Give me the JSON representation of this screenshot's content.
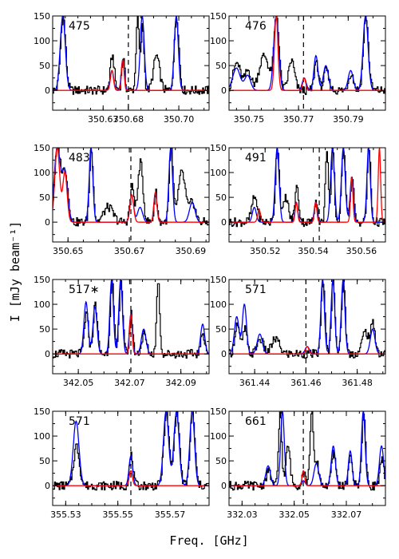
{
  "chart_data": {
    "type": "line",
    "ylabel": "I [mJy beam⁻¹]",
    "xlabel": "Freq. [GHz]",
    "ylim": [
      -40,
      150
    ],
    "yticks": [
      0,
      50,
      100,
      150
    ],
    "colors": {
      "observed": "#000000",
      "model_total": "#0000ff",
      "model_species": "#ff0000",
      "reference_line": "#000000"
    },
    "panels": [
      {
        "id": "p475",
        "label": "475",
        "xlim": [
          350.65,
          350.712
        ],
        "xticks": [
          350.67,
          350.68,
          350.7
        ],
        "tick_labels": [
          "350.67",
          "350.68",
          "350.70"
        ],
        "marker": 350.68,
        "blue_peaks": [
          [
            350.654,
            150,
            0.001
          ],
          [
            350.6735,
            40,
            0.0007
          ],
          [
            350.6778,
            62,
            0.0006
          ],
          [
            350.6855,
            150,
            0.0008
          ],
          [
            350.699,
            150,
            0.0008
          ]
        ],
        "red_peaks": [
          [
            350.6735,
            40,
            0.0006
          ],
          [
            350.6778,
            62,
            0.0005
          ]
        ],
        "black_peaks": [
          [
            350.654,
            150,
            0.001
          ],
          [
            350.6735,
            70,
            0.0008
          ],
          [
            350.6778,
            65,
            0.0006
          ],
          [
            350.6835,
            150,
            0.0006
          ],
          [
            350.6855,
            130,
            0.0006
          ],
          [
            350.691,
            70,
            0.0012
          ],
          [
            350.699,
            150,
            0.0009
          ]
        ]
      },
      {
        "id": "p476",
        "label": "476",
        "xlim": [
          350.742,
          350.805
        ],
        "xticks": [
          350.75,
          350.77,
          350.79
        ],
        "tick_labels": [
          "350.75",
          "350.77",
          "350.79"
        ],
        "marker": 350.772,
        "blue_peaks": [
          [
            350.745,
            45,
            0.0015
          ],
          [
            350.7495,
            30,
            0.0012
          ],
          [
            350.761,
            150,
            0.001
          ],
          [
            350.7723,
            25,
            0.0008
          ],
          [
            350.777,
            70,
            0.0008
          ],
          [
            350.781,
            50,
            0.001
          ],
          [
            350.791,
            40,
            0.001
          ],
          [
            350.797,
            150,
            0.001
          ]
        ],
        "red_peaks": [
          [
            350.761,
            150,
            0.0007
          ],
          [
            350.7723,
            25,
            0.0006
          ]
        ],
        "black_peaks": [
          [
            350.745,
            55,
            0.0015
          ],
          [
            350.7495,
            40,
            0.0012
          ],
          [
            350.756,
            70,
            0.002
          ],
          [
            350.761,
            150,
            0.001
          ],
          [
            350.767,
            60,
            0.0012
          ],
          [
            350.777,
            60,
            0.0008
          ],
          [
            350.781,
            40,
            0.001
          ],
          [
            350.791,
            35,
            0.001
          ],
          [
            350.797,
            150,
            0.001
          ]
        ]
      },
      {
        "id": "p483",
        "label": "483",
        "xlim": [
          350.645,
          350.696
        ],
        "xticks": [
          350.65,
          350.67,
          350.69
        ],
        "tick_labels": [
          "350.65",
          "350.67",
          "350.69"
        ],
        "marker": 350.6705,
        "blue_peaks": [
          [
            350.6465,
            150,
            0.001
          ],
          [
            350.649,
            100,
            0.0009
          ],
          [
            350.6575,
            150,
            0.0006
          ],
          [
            350.6708,
            55,
            0.0006
          ],
          [
            350.6735,
            30,
            0.0008
          ],
          [
            350.6785,
            60,
            0.0005
          ],
          [
            350.6835,
            150,
            0.0006
          ],
          [
            350.6905,
            40,
            0.0009
          ]
        ],
        "red_peaks": [
          [
            350.6465,
            150,
            0.0008
          ],
          [
            350.649,
            100,
            0.0007
          ],
          [
            350.6708,
            55,
            0.0006
          ],
          [
            350.6785,
            60,
            0.0005
          ]
        ],
        "black_peaks": [
          [
            350.6465,
            150,
            0.001
          ],
          [
            350.649,
            100,
            0.0009
          ],
          [
            350.6575,
            150,
            0.0006
          ],
          [
            350.663,
            30,
            0.0015
          ],
          [
            350.6708,
            70,
            0.0007
          ],
          [
            350.6735,
            120,
            0.0008
          ],
          [
            350.6785,
            60,
            0.0005
          ],
          [
            350.6835,
            150,
            0.0006
          ],
          [
            350.687,
            100,
            0.0012
          ],
          [
            350.6905,
            40,
            0.0009
          ]
        ]
      },
      {
        "id": "p491",
        "label": "491",
        "xlim": [
          350.505,
          350.57
        ],
        "xticks": [
          350.52,
          350.54,
          350.56
        ],
        "tick_labels": [
          "350.52",
          "350.54",
          "350.56"
        ],
        "marker": 350.5425,
        "blue_peaks": [
          [
            350.5155,
            30,
            0.0008
          ],
          [
            350.525,
            150,
            0.0008
          ],
          [
            350.533,
            40,
            0.0006
          ],
          [
            350.541,
            40,
            0.0006
          ],
          [
            350.548,
            150,
            0.0008
          ],
          [
            350.5525,
            150,
            0.0008
          ],
          [
            350.556,
            90,
            0.0007
          ],
          [
            350.563,
            150,
            0.0007
          ]
        ],
        "red_peaks": [
          [
            350.5175,
            25,
            0.0006
          ],
          [
            350.533,
            40,
            0.0005
          ],
          [
            350.541,
            40,
            0.0005
          ],
          [
            350.556,
            90,
            0.0005
          ],
          [
            350.5675,
            150,
            0.0005
          ]
        ],
        "black_peaks": [
          [
            350.5155,
            50,
            0.0012
          ],
          [
            350.525,
            150,
            0.0008
          ],
          [
            350.5285,
            50,
            0.001
          ],
          [
            350.533,
            70,
            0.0008
          ],
          [
            350.541,
            50,
            0.0006
          ],
          [
            350.5455,
            150,
            0.0006
          ],
          [
            350.548,
            150,
            0.0006
          ],
          [
            350.5525,
            150,
            0.0008
          ],
          [
            350.556,
            90,
            0.0007
          ],
          [
            350.563,
            150,
            0.0007
          ]
        ]
      },
      {
        "id": "p517",
        "label": "517∗",
        "xlim": [
          342.04,
          342.101
        ],
        "xticks": [
          342.05,
          342.07,
          342.09
        ],
        "tick_labels": [
          "342.05",
          "342.07",
          "342.09"
        ],
        "marker": 342.0705,
        "blue_peaks": [
          [
            342.053,
            105,
            0.0008
          ],
          [
            342.0565,
            95,
            0.0008
          ],
          [
            342.063,
            150,
            0.0007
          ],
          [
            342.0665,
            150,
            0.0007
          ],
          [
            342.0705,
            80,
            0.0006
          ],
          [
            342.0755,
            50,
            0.0009
          ],
          [
            342.0985,
            60,
            0.0008
          ]
        ],
        "red_peaks": [
          [
            342.0705,
            80,
            0.0005
          ]
        ],
        "black_peaks": [
          [
            342.053,
            80,
            0.0008
          ],
          [
            342.0565,
            100,
            0.0008
          ],
          [
            342.063,
            150,
            0.0007
          ],
          [
            342.0665,
            150,
            0.0007
          ],
          [
            342.0705,
            80,
            0.0006
          ],
          [
            342.0755,
            40,
            0.0009
          ],
          [
            342.081,
            150,
            0.0006
          ],
          [
            342.0985,
            40,
            0.0008
          ]
        ]
      },
      {
        "id": "p571a",
        "label": "571",
        "xlim": [
          361.43,
          361.491
        ],
        "xticks": [
          361.44,
          361.46,
          361.48
        ],
        "tick_labels": [
          "361.44",
          "361.46",
          "361.48"
        ],
        "marker": 361.46,
        "blue_peaks": [
          [
            361.433,
            75,
            0.0009
          ],
          [
            361.436,
            100,
            0.0008
          ],
          [
            361.442,
            40,
            0.001
          ],
          [
            361.4605,
            15,
            0.0008
          ],
          [
            361.4665,
            150,
            0.0007
          ],
          [
            361.4705,
            150,
            0.0007
          ],
          [
            361.4745,
            150,
            0.0007
          ],
          [
            361.486,
            50,
            0.0009
          ]
        ],
        "red_peaks": [
          [
            361.4605,
            15,
            0.0006
          ]
        ],
        "black_peaks": [
          [
            361.433,
            60,
            0.0009
          ],
          [
            361.436,
            50,
            0.0008
          ],
          [
            361.442,
            30,
            0.0012
          ],
          [
            361.448,
            30,
            0.0015
          ],
          [
            361.4665,
            150,
            0.0007
          ],
          [
            361.4705,
            150,
            0.0007
          ],
          [
            361.4745,
            150,
            0.0007
          ],
          [
            361.483,
            45,
            0.0012
          ],
          [
            361.486,
            60,
            0.0009
          ]
        ]
      },
      {
        "id": "p571b",
        "label": "571",
        "xlim": [
          355.525,
          355.585
        ],
        "xticks": [
          355.53,
          355.55,
          355.57
        ],
        "tick_labels": [
          "355.53",
          "355.55",
          "355.57"
        ],
        "marker": 355.555,
        "blue_peaks": [
          [
            355.534,
            130,
            0.0011
          ],
          [
            355.555,
            60,
            0.0007
          ],
          [
            355.5685,
            150,
            0.001
          ],
          [
            355.5725,
            150,
            0.001
          ],
          [
            355.5785,
            150,
            0.0009
          ]
        ],
        "red_peaks": [
          [
            355.555,
            30,
            0.0006
          ]
        ],
        "black_peaks": [
          [
            355.534,
            80,
            0.0011
          ],
          [
            355.555,
            60,
            0.0007
          ],
          [
            355.5685,
            150,
            0.001
          ],
          [
            355.5725,
            150,
            0.001
          ],
          [
            355.5785,
            150,
            0.0009
          ]
        ]
      },
      {
        "id": "p661",
        "label": "661",
        "xlim": [
          332.025,
          332.085
        ],
        "xticks": [
          332.03,
          332.05,
          332.07
        ],
        "tick_labels": [
          "332.03",
          "332.05",
          "332.07"
        ],
        "marker": 332.0535,
        "blue_peaks": [
          [
            332.04,
            40,
            0.0009
          ],
          [
            332.0455,
            150,
            0.0007
          ],
          [
            332.0535,
            10,
            0.0007
          ],
          [
            332.0585,
            45,
            0.0009
          ],
          [
            332.065,
            80,
            0.0008
          ],
          [
            332.0715,
            70,
            0.0007
          ],
          [
            332.0765,
            150,
            0.0007
          ],
          [
            332.0835,
            80,
            0.0008
          ]
        ],
        "red_peaks": [
          [
            332.0535,
            30,
            0.0005
          ]
        ],
        "black_peaks": [
          [
            332.04,
            30,
            0.0009
          ],
          [
            332.0445,
            150,
            0.0006
          ],
          [
            332.0475,
            80,
            0.0008
          ],
          [
            332.0535,
            30,
            0.0007
          ],
          [
            332.0565,
            150,
            0.0006
          ],
          [
            332.0585,
            45,
            0.0009
          ],
          [
            332.065,
            65,
            0.0008
          ],
          [
            332.0715,
            60,
            0.0007
          ],
          [
            332.0765,
            150,
            0.0007
          ],
          [
            332.0835,
            50,
            0.0008
          ]
        ]
      }
    ]
  }
}
